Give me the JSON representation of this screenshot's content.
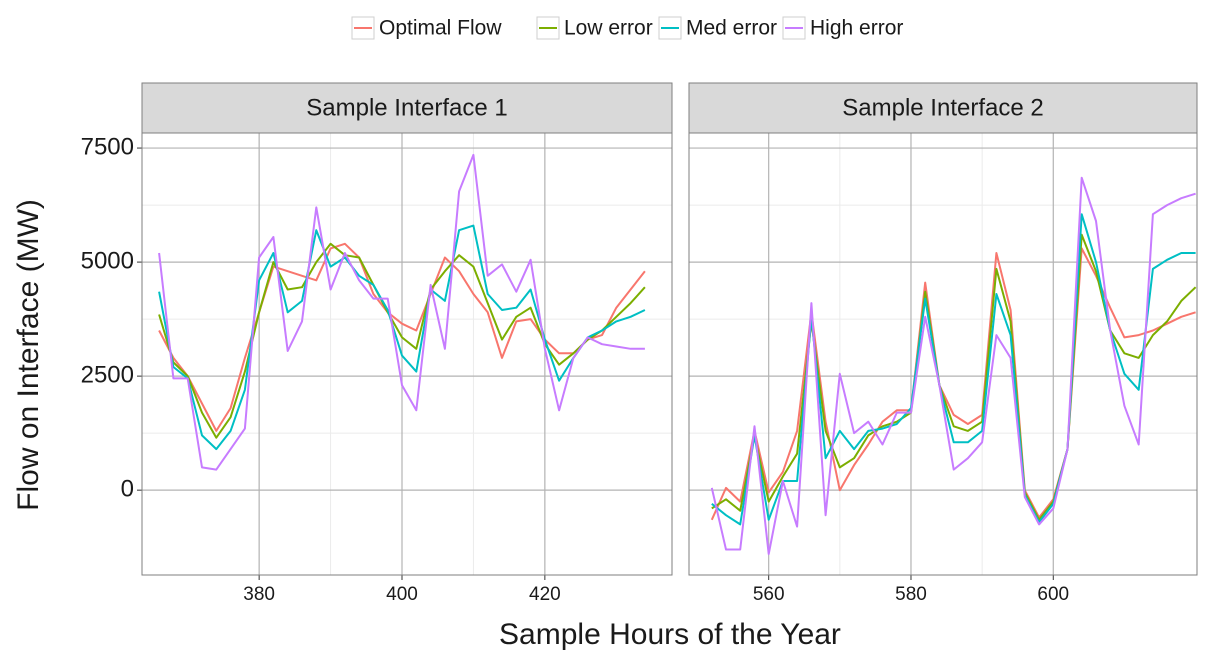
{
  "chart_data": {
    "type": "line",
    "xlabel": "Sample Hours of the Year",
    "ylabel": "Flow on Interface (MW)",
    "ylim": [
      -1860,
      7830
    ],
    "yticks": [
      0,
      2500,
      5000,
      7500
    ],
    "grid": true,
    "legend": "top",
    "series": [
      {
        "name": "Optimal Flow",
        "color": "#f8766d"
      },
      {
        "name": "Low error",
        "color": "#7cae00"
      },
      {
        "name": "Med error",
        "color": "#00bfc4"
      },
      {
        "name": "High error",
        "color": "#c77cff"
      }
    ],
    "panels": [
      {
        "title": "Sample Interface 1",
        "x": [
          366,
          368,
          370,
          372,
          374,
          376,
          378,
          380,
          382,
          384,
          386,
          388,
          390,
          392,
          394,
          396,
          398,
          400,
          402,
          404,
          406,
          408,
          410,
          412,
          414,
          416,
          418,
          420,
          422,
          424,
          426,
          428,
          430,
          432,
          434
        ],
        "xlim": [
          363.6,
          437.8
        ],
        "xticks": [
          380,
          400,
          420
        ],
        "series": [
          {
            "values": [
              3500,
              2900,
              2500,
              1900,
              1300,
              1800,
              2900,
              3900,
              4900,
              4800,
              4700,
              4600,
              5300,
              5400,
              5100,
              4300,
              3900,
              3650,
              3500,
              4300,
              5100,
              4800,
              4300,
              3900,
              2900,
              3700,
              3750,
              3300,
              3000,
              3000,
              3300,
              3400,
              4000,
              4400,
              4800
            ]
          },
          {
            "values": [
              3850,
              2800,
              2500,
              1700,
              1150,
              1600,
              2600,
              3900,
              5000,
              4400,
              4450,
              5000,
              5400,
              5150,
              5100,
              4500,
              3900,
              3350,
              3100,
              4400,
              4800,
              5150,
              4900,
              4100,
              3300,
              3800,
              4000,
              3200,
              2750,
              3000,
              3300,
              3500,
              3800,
              4100,
              4450
            ]
          },
          {
            "values": [
              4350,
              2700,
              2450,
              1200,
              900,
              1300,
              2200,
              4600,
              5200,
              3900,
              4150,
              5700,
              4900,
              5100,
              4700,
              4500,
              3950,
              2950,
              2600,
              4400,
              4150,
              5700,
              5800,
              4300,
              3950,
              4000,
              4400,
              3300,
              2400,
              2900,
              3350,
              3500,
              3700,
              3800,
              3950
            ]
          },
          {
            "values": [
              5200,
              2450,
              2450,
              500,
              450,
              900,
              1350,
              5100,
              5550,
              3050,
              3700,
              6200,
              4400,
              5200,
              4600,
              4200,
              4200,
              2300,
              1750,
              4500,
              3100,
              6550,
              7350,
              4700,
              4950,
              4350,
              5050,
              3100,
              1750,
              2900,
              3350,
              3200,
              3150,
              3100,
              3100
            ]
          }
        ]
      },
      {
        "title": "Sample Interface 2",
        "x": [
          552,
          554,
          556,
          558,
          560,
          562,
          564,
          566,
          568,
          570,
          572,
          574,
          576,
          578,
          580,
          582,
          584,
          586,
          588,
          590,
          592,
          594,
          596,
          598,
          600,
          602,
          604,
          606,
          608,
          610,
          612,
          614,
          616,
          618,
          620
        ],
        "xlim": [
          548.8,
          620.2
        ],
        "xticks": [
          560,
          580,
          600
        ],
        "series": [
          {
            "values": [
              -650,
              50,
              -250,
              1300,
              -50,
              400,
              1300,
              3900,
              1500,
              0,
              550,
              1000,
              1500,
              1750,
              1750,
              4550,
              2300,
              1650,
              1450,
              1650,
              5200,
              3950,
              0,
              -600,
              -200,
              900,
              5300,
              4700,
              4000,
              3350,
              3400,
              3500,
              3650,
              3800,
              3900
            ]
          },
          {
            "values": [
              -400,
              -200,
              -450,
              1200,
              -250,
              300,
              800,
              3700,
              1300,
              500,
              700,
              1200,
              1400,
              1500,
              1700,
              4350,
              2300,
              1400,
              1300,
              1500,
              4850,
              3700,
              -50,
              -650,
              -250,
              900,
              5600,
              4800,
              3500,
              3000,
              2900,
              3400,
              3700,
              4150,
              4450
            ]
          },
          {
            "values": [
              -300,
              -550,
              -750,
              1200,
              -650,
              200,
              200,
              3800,
              700,
              1300,
              900,
              1300,
              1350,
              1450,
              1800,
              4200,
              2300,
              1050,
              1050,
              1300,
              4300,
              3400,
              -100,
              -700,
              -300,
              900,
              6050,
              5000,
              3500,
              2550,
              2200,
              4850,
              5050,
              5200,
              5200
            ]
          },
          {
            "values": [
              50,
              -1300,
              -1300,
              1400,
              -1400,
              200,
              -800,
              4100,
              -550,
              2550,
              1250,
              1500,
              1000,
              1700,
              1700,
              3800,
              2300,
              450,
              700,
              1050,
              3400,
              2900,
              -150,
              -750,
              -400,
              900,
              6850,
              5900,
              3500,
              1850,
              1000,
              6050,
              6250,
              6400,
              6500
            ]
          }
        ]
      }
    ]
  }
}
